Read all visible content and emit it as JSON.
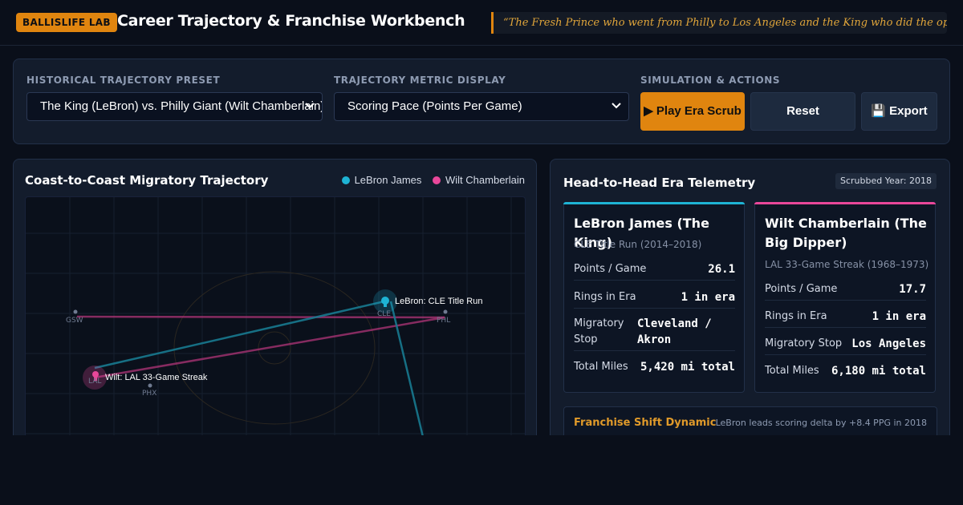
{
  "header": {
    "badge": "BALLISLIFE LAB",
    "title": "Career Trajectory & Franchise Workbench",
    "quote": "“The Fresh Prince who went from Philly to Los Angeles and the King who did the opposite.”"
  },
  "controls": {
    "preset_label": "HISTORICAL TRAJECTORY PRESET",
    "preset_value": "The King (LeBron) vs. Philly Giant (Wilt Chamberlain)",
    "metric_label": "TRAJECTORY METRIC DISPLAY",
    "metric_value": "Scoring Pace (Points Per Game)",
    "actions_label": "SIMULATION & ACTIONS",
    "play_label": "▶ Play Era Scrub",
    "reset_label": "Reset",
    "export_label": "💾 Export"
  },
  "map": {
    "title": "Coast-to-Coast Migratory Trajectory",
    "legend": [
      {
        "name": "LeBron James",
        "color": "#1eb3d4"
      },
      {
        "name": "Wilt Chamberlain",
        "color": "#e9479a"
      }
    ],
    "cities": {
      "gsw": "GSW",
      "phl": "PHL",
      "cle": "CLE",
      "lal": "LAL",
      "phx": "PHX"
    },
    "pins": {
      "lebron": "LeBron: CLE Title Run",
      "wilt": "Wilt: LAL 33-Game Streak"
    }
  },
  "telemetry": {
    "title": "Head-to-Head Era Telemetry",
    "year_badge": "Scrubbed Year: 2018",
    "lebron": {
      "name": "LeBron James (The King)",
      "era": "CLE Title Run (2014–2018)",
      "color": "#1eb3d4",
      "rows": [
        {
          "k": "Points / Game",
          "v": "26.1"
        },
        {
          "k": "Rings in Era",
          "v": "1 in era"
        },
        {
          "k": "Migratory Stop",
          "v": "Cleveland / Akron"
        },
        {
          "k": "Total Miles",
          "v": "5,420 mi total"
        }
      ]
    },
    "wilt": {
      "name": "Wilt Chamberlain (The Big Dipper)",
      "era": "LAL 33-Game Streak (1968–1973)",
      "color": "#e9479a",
      "rows": [
        {
          "k": "Points / Game",
          "v": "17.7"
        },
        {
          "k": "Rings in Era",
          "v": "1 in era"
        },
        {
          "k": "Migratory Stop",
          "v": "Los Angeles"
        },
        {
          "k": "Total Miles",
          "v": "6,180 mi total"
        }
      ]
    },
    "shift": {
      "title": "Franchise Shift Dynamic",
      "note": "LeBron leads scoring delta by +8.4 PPG in 2018"
    }
  }
}
